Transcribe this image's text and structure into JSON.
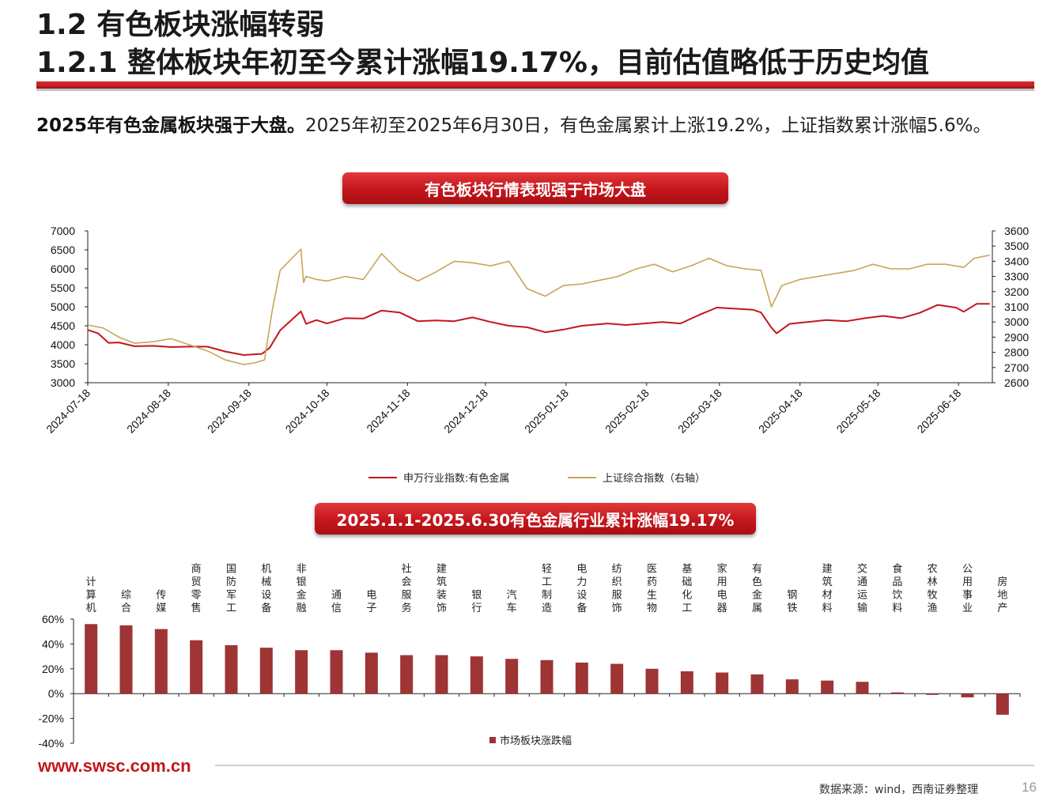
{
  "header": {
    "title1": "1.2 有色板块涨幅转弱",
    "title2": "1.2.1 整体板块年初至今累计涨幅19.17%，目前估值略低于历史均值"
  },
  "intro": {
    "bold": "2025年有色金属板块强于大盘。",
    "rest": "2025年初至2025年6月30日，有色金属累计上涨19.2%，上证指数累计涨幅5.6%。"
  },
  "banner1": "有色板块行情表现强于市场大盘",
  "banner2": "2025.1.1-2025.6.30有色金属行业累计涨幅19.17%",
  "colors": {
    "red": "#c4161c",
    "gold": "#c9a45a",
    "bar": "#9e3434"
  },
  "chart_data": [
    {
      "type": "line",
      "x_ticks": [
        "2024-07-18",
        "2024-08-18",
        "2024-09-18",
        "2024-10-18",
        "2024-11-18",
        "2024-12-18",
        "2025-01-18",
        "2025-02-18",
        "2025-03-18",
        "2025-04-18",
        "2025-05-18",
        "2025-06-18"
      ],
      "y_ticks_left": [
        "7000",
        "6500",
        "6000",
        "5500",
        "5000",
        "4500",
        "4000",
        "3500",
        "3000"
      ],
      "y_ticks_right": [
        "3600",
        "3500",
        "3400",
        "3300",
        "3200",
        "3100",
        "3000",
        "2900",
        "2800",
        "2700",
        "2600"
      ],
      "ylim_left": [
        3000,
        7000
      ],
      "ylim_right": [
        2600,
        3600
      ],
      "series": [
        {
          "name": "申万行业指数:有色金属",
          "axis": "left",
          "points": [
            [
              "2024-07-18",
              4390
            ],
            [
              "2024-07-22",
              4300
            ],
            [
              "2024-07-26",
              4050
            ],
            [
              "2024-07-30",
              4060
            ],
            [
              "2024-08-05",
              3960
            ],
            [
              "2024-08-12",
              3970
            ],
            [
              "2024-08-19",
              3940
            ],
            [
              "2024-08-26",
              3950
            ],
            [
              "2024-09-02",
              3950
            ],
            [
              "2024-09-09",
              3820
            ],
            [
              "2024-09-16",
              3730
            ],
            [
              "2024-09-23",
              3760
            ],
            [
              "2024-09-26",
              3920
            ],
            [
              "2024-09-30",
              4380
            ],
            [
              "2024-10-08",
              4880
            ],
            [
              "2024-10-10",
              4550
            ],
            [
              "2024-10-14",
              4650
            ],
            [
              "2024-10-18",
              4560
            ],
            [
              "2024-10-25",
              4700
            ],
            [
              "2024-11-01",
              4690
            ],
            [
              "2024-11-08",
              4900
            ],
            [
              "2024-11-15",
              4850
            ],
            [
              "2024-11-22",
              4620
            ],
            [
              "2024-11-29",
              4640
            ],
            [
              "2024-12-06",
              4620
            ],
            [
              "2024-12-13",
              4720
            ],
            [
              "2024-12-20",
              4600
            ],
            [
              "2024-12-27",
              4500
            ],
            [
              "2025-01-03",
              4460
            ],
            [
              "2025-01-10",
              4330
            ],
            [
              "2025-01-17",
              4400
            ],
            [
              "2025-01-24",
              4500
            ],
            [
              "2025-02-03",
              4560
            ],
            [
              "2025-02-10",
              4520
            ],
            [
              "2025-02-17",
              4560
            ],
            [
              "2025-02-24",
              4600
            ],
            [
              "2025-03-03",
              4560
            ],
            [
              "2025-03-10",
              4780
            ],
            [
              "2025-03-17",
              4980
            ],
            [
              "2025-03-24",
              4950
            ],
            [
              "2025-03-31",
              4920
            ],
            [
              "2025-04-03",
              4850
            ],
            [
              "2025-04-07",
              4450
            ],
            [
              "2025-04-09",
              4300
            ],
            [
              "2025-04-14",
              4550
            ],
            [
              "2025-04-21",
              4600
            ],
            [
              "2025-04-28",
              4650
            ],
            [
              "2025-05-06",
              4620
            ],
            [
              "2025-05-13",
              4700
            ],
            [
              "2025-05-20",
              4760
            ],
            [
              "2025-05-27",
              4700
            ],
            [
              "2025-06-03",
              4840
            ],
            [
              "2025-06-10",
              5050
            ],
            [
              "2025-06-17",
              4980
            ],
            [
              "2025-06-20",
              4870
            ],
            [
              "2025-06-25",
              5080
            ],
            [
              "2025-06-30",
              5080
            ]
          ]
        },
        {
          "name": "上证综合指数（右轴）",
          "axis": "right",
          "points": [
            [
              "2024-07-18",
              2980
            ],
            [
              "2024-07-24",
              2960
            ],
            [
              "2024-07-30",
              2900
            ],
            [
              "2024-08-05",
              2860
            ],
            [
              "2024-08-12",
              2870
            ],
            [
              "2024-08-19",
              2890
            ],
            [
              "2024-08-26",
              2850
            ],
            [
              "2024-09-02",
              2810
            ],
            [
              "2024-09-09",
              2750
            ],
            [
              "2024-09-16",
              2720
            ],
            [
              "2024-09-20",
              2730
            ],
            [
              "2024-09-24",
              2750
            ],
            [
              "2024-09-27",
              3080
            ],
            [
              "2024-09-30",
              3340
            ],
            [
              "2024-10-08",
              3480
            ],
            [
              "2024-10-09",
              3260
            ],
            [
              "2024-10-10",
              3300
            ],
            [
              "2024-10-14",
              3280
            ],
            [
              "2024-10-18",
              3270
            ],
            [
              "2024-10-25",
              3300
            ],
            [
              "2024-11-01",
              3280
            ],
            [
              "2024-11-08",
              3450
            ],
            [
              "2024-11-15",
              3330
            ],
            [
              "2024-11-22",
              3270
            ],
            [
              "2024-11-29",
              3330
            ],
            [
              "2024-12-06",
              3400
            ],
            [
              "2024-12-13",
              3390
            ],
            [
              "2024-12-20",
              3370
            ],
            [
              "2024-12-27",
              3400
            ],
            [
              "2025-01-03",
              3220
            ],
            [
              "2025-01-10",
              3170
            ],
            [
              "2025-01-17",
              3240
            ],
            [
              "2025-01-24",
              3250
            ],
            [
              "2025-02-07",
              3300
            ],
            [
              "2025-02-14",
              3350
            ],
            [
              "2025-02-21",
              3380
            ],
            [
              "2025-02-28",
              3330
            ],
            [
              "2025-03-07",
              3370
            ],
            [
              "2025-03-14",
              3420
            ],
            [
              "2025-03-21",
              3370
            ],
            [
              "2025-03-28",
              3350
            ],
            [
              "2025-04-03",
              3340
            ],
            [
              "2025-04-07",
              3100
            ],
            [
              "2025-04-11",
              3240
            ],
            [
              "2025-04-18",
              3280
            ],
            [
              "2025-04-25",
              3300
            ],
            [
              "2025-05-09",
              3340
            ],
            [
              "2025-05-16",
              3380
            ],
            [
              "2025-05-23",
              3350
            ],
            [
              "2025-05-30",
              3350
            ],
            [
              "2025-06-06",
              3380
            ],
            [
              "2025-06-13",
              3380
            ],
            [
              "2025-06-20",
              3360
            ],
            [
              "2025-06-24",
              3420
            ],
            [
              "2025-06-30",
              3440
            ]
          ]
        }
      ]
    },
    {
      "type": "bar",
      "categories": [
        "计算机",
        "综合",
        "传媒",
        "商贸零售",
        "国防军工",
        "机械设备",
        "非银金融",
        "通信",
        "电子",
        "社会服务",
        "建筑装饰",
        "银行",
        "汽车",
        "轻工制造",
        "电力设备",
        "纺织服饰",
        "医药生物",
        "基础化工",
        "家用电器",
        "有色金属",
        "钢铁",
        "建筑材料",
        "交通运输",
        "食品饮料",
        "农林牧渔",
        "公用事业",
        "房地产"
      ],
      "values": [
        56,
        55,
        52,
        43,
        39,
        37,
        35,
        35,
        33,
        31,
        31,
        30,
        28,
        27,
        25,
        24,
        20,
        18,
        17,
        15.5,
        11.5,
        10.5,
        9.5,
        1,
        -1,
        -3,
        -17
      ],
      "y_ticks": [
        "60%",
        "40%",
        "20%",
        "0%",
        "-20%",
        "-40%"
      ],
      "ylim": [
        -40,
        60
      ],
      "series_name": "市场板块涨跌幅"
    }
  ],
  "footer": {
    "url": "www.swsc.com.cn",
    "source": "数据来源：wind，西南证券整理",
    "page": "16"
  }
}
